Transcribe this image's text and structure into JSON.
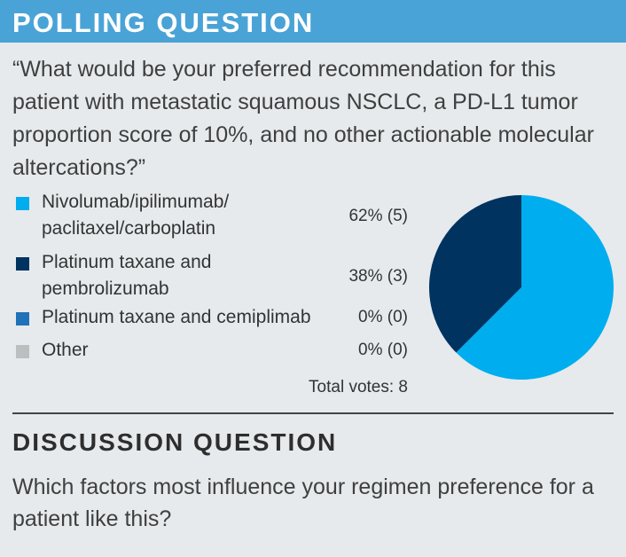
{
  "header": {
    "title": "POLLING QUESTION"
  },
  "question": "“What would be your preferred recommendation for this patient with metastatic squamous NSCLC, a PD-L1 tumor proportion score of 10%, and no other actionable molecular altercations?”",
  "options": [
    {
      "label_lines": [
        "Nivolumab/ipilimumab/",
        "paclitaxel/carboplatin"
      ],
      "value_text": "62% (5)",
      "color": "#00adef"
    },
    {
      "label_lines": [
        "Platinum taxane and",
        "pembrolizumab"
      ],
      "value_text": "38% (3)",
      "color": "#00335f"
    },
    {
      "label_lines": [
        "Platinum taxane and cemiplimab"
      ],
      "value_text": "0% (0)",
      "color": "#1f72b8"
    },
    {
      "label_lines": [
        "Other"
      ],
      "value_text": "0% (0)",
      "color": "#bcbec0"
    }
  ],
  "total_votes": "Total votes: 8",
  "chart_data": {
    "type": "pie",
    "categories": [
      "Nivolumab/ipilimumab/paclitaxel/carboplatin",
      "Platinum taxane and pembrolizumab",
      "Platinum taxane and cemiplimab",
      "Other"
    ],
    "values": [
      5,
      3,
      0,
      0
    ],
    "percentages": [
      62,
      38,
      0,
      0
    ],
    "colors": [
      "#00adef",
      "#00335f",
      "#1f72b8",
      "#bcbec0"
    ],
    "legend": "left",
    "start_angle": "12 o'clock, clockwise"
  },
  "discussion": {
    "title": "DISCUSSION QUESTION",
    "text": "Which factors most influence your regimen preference for a patient like this?"
  }
}
